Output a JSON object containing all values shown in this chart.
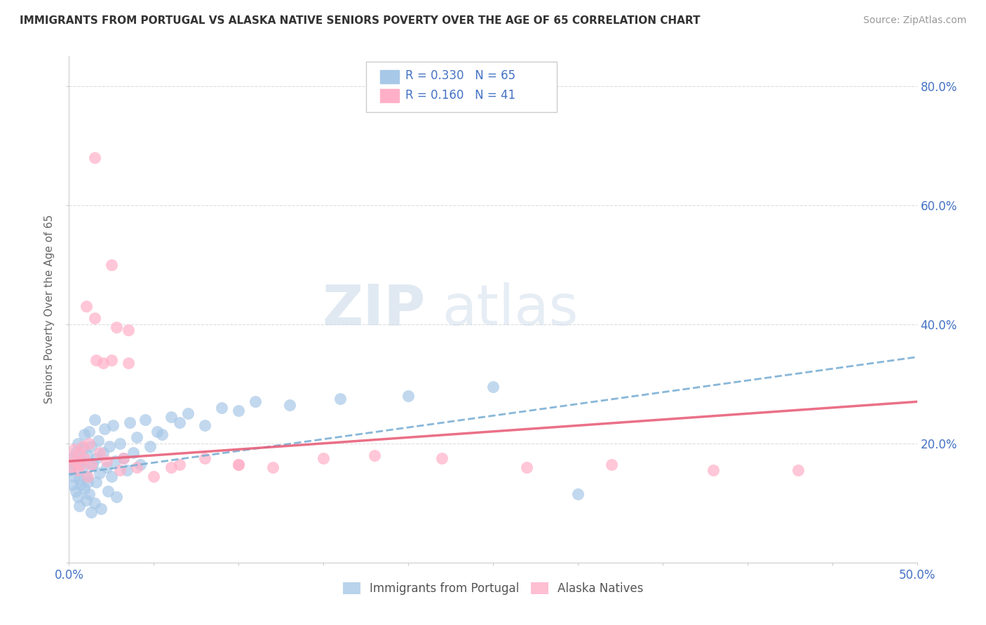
{
  "title": "IMMIGRANTS FROM PORTUGAL VS ALASKA NATIVE SENIORS POVERTY OVER THE AGE OF 65 CORRELATION CHART",
  "source": "Source: ZipAtlas.com",
  "ylabel": "Seniors Poverty Over the Age of 65",
  "xlim": [
    0.0,
    0.5
  ],
  "ylim": [
    0.0,
    0.85
  ],
  "xticks": [
    0.0,
    0.05,
    0.1,
    0.15,
    0.2,
    0.25,
    0.3,
    0.35,
    0.4,
    0.45,
    0.5
  ],
  "xtick_labels": [
    "0.0%",
    "",
    "",
    "",
    "",
    "",
    "",
    "",
    "",
    "",
    "50.0%"
  ],
  "ytick_positions": [
    0.0,
    0.2,
    0.4,
    0.6,
    0.8
  ],
  "ytick_labels": [
    "",
    "20.0%",
    "40.0%",
    "60.0%",
    "80.0%"
  ],
  "legend_r1": "R = 0.330",
  "legend_n1": "N = 65",
  "legend_r2": "R = 0.160",
  "legend_n2": "N = 41",
  "color_blue": "#A8C8E8",
  "color_pink": "#FFB0C8",
  "color_blue_line": "#7BAFD4",
  "color_pink_line": "#E8607A",
  "axis_color": "#CCCCCC",
  "grid_color": "#DDDDDD",
  "text_blue": "#4472C4",
  "blue_line_start_y": 0.148,
  "blue_line_end_y": 0.345,
  "pink_line_start_y": 0.17,
  "pink_line_end_y": 0.27,
  "blue_scatter_x": [
    0.001,
    0.002,
    0.002,
    0.003,
    0.003,
    0.004,
    0.004,
    0.005,
    0.005,
    0.006,
    0.006,
    0.007,
    0.007,
    0.008,
    0.008,
    0.009,
    0.009,
    0.01,
    0.01,
    0.011,
    0.011,
    0.012,
    0.012,
    0.013,
    0.013,
    0.014,
    0.015,
    0.015,
    0.016,
    0.016,
    0.017,
    0.018,
    0.019,
    0.02,
    0.021,
    0.022,
    0.023,
    0.024,
    0.025,
    0.026,
    0.027,
    0.028,
    0.03,
    0.032,
    0.034,
    0.036,
    0.038,
    0.04,
    0.042,
    0.045,
    0.048,
    0.052,
    0.055,
    0.06,
    0.065,
    0.07,
    0.08,
    0.09,
    0.1,
    0.11,
    0.13,
    0.16,
    0.2,
    0.25,
    0.3
  ],
  "blue_scatter_y": [
    0.155,
    0.13,
    0.175,
    0.145,
    0.165,
    0.12,
    0.185,
    0.11,
    0.2,
    0.14,
    0.095,
    0.17,
    0.13,
    0.16,
    0.19,
    0.125,
    0.215,
    0.145,
    0.105,
    0.18,
    0.135,
    0.22,
    0.115,
    0.195,
    0.085,
    0.165,
    0.24,
    0.1,
    0.175,
    0.135,
    0.205,
    0.15,
    0.09,
    0.185,
    0.225,
    0.16,
    0.12,
    0.195,
    0.145,
    0.23,
    0.17,
    0.11,
    0.2,
    0.175,
    0.155,
    0.235,
    0.185,
    0.21,
    0.165,
    0.24,
    0.195,
    0.22,
    0.215,
    0.245,
    0.235,
    0.25,
    0.23,
    0.26,
    0.255,
    0.27,
    0.265,
    0.275,
    0.28,
    0.295,
    0.115
  ],
  "pink_scatter_x": [
    0.001,
    0.002,
    0.003,
    0.004,
    0.005,
    0.006,
    0.007,
    0.008,
    0.009,
    0.01,
    0.011,
    0.012,
    0.013,
    0.015,
    0.016,
    0.018,
    0.02,
    0.022,
    0.025,
    0.028,
    0.03,
    0.032,
    0.035,
    0.04,
    0.05,
    0.06,
    0.08,
    0.1,
    0.12,
    0.15,
    0.18,
    0.22,
    0.27,
    0.32,
    0.38,
    0.43,
    0.015,
    0.025,
    0.035,
    0.065,
    0.1
  ],
  "pink_scatter_y": [
    0.175,
    0.16,
    0.19,
    0.17,
    0.155,
    0.185,
    0.165,
    0.195,
    0.175,
    0.43,
    0.145,
    0.2,
    0.165,
    0.41,
    0.34,
    0.185,
    0.335,
    0.17,
    0.34,
    0.395,
    0.155,
    0.175,
    0.335,
    0.16,
    0.145,
    0.16,
    0.175,
    0.165,
    0.16,
    0.175,
    0.18,
    0.175,
    0.16,
    0.165,
    0.155,
    0.155,
    0.68,
    0.5,
    0.39,
    0.165,
    0.165
  ]
}
